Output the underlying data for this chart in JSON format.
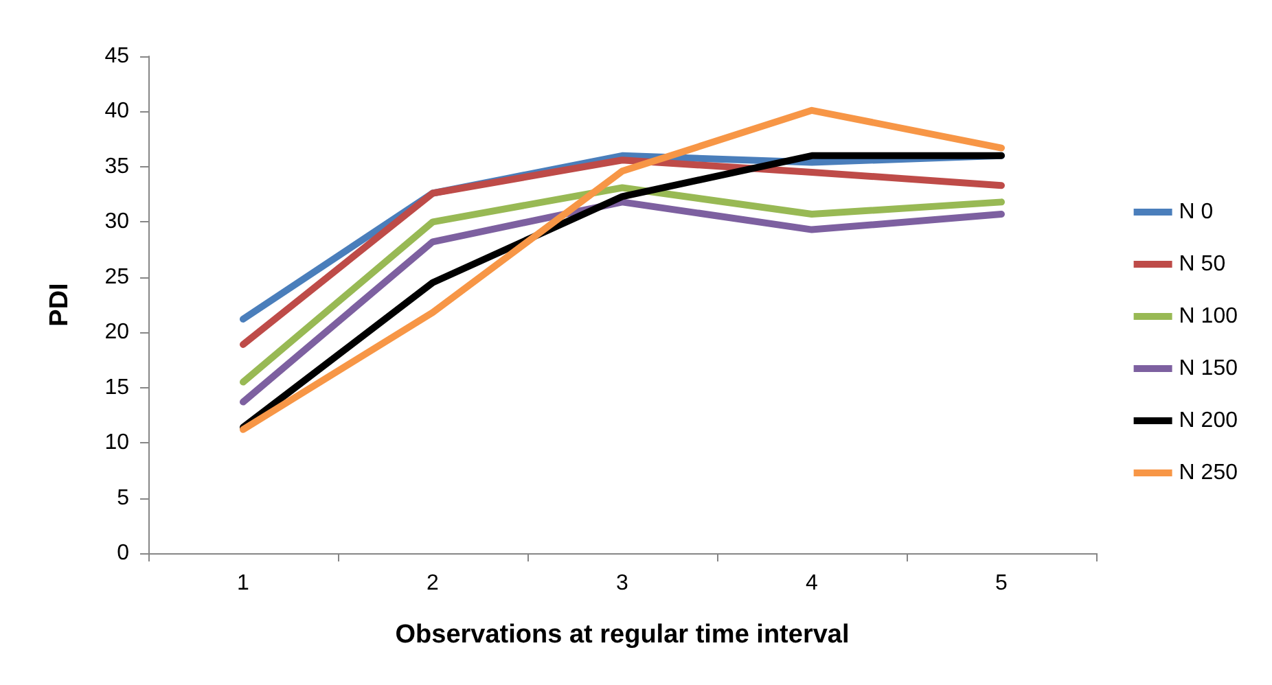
{
  "chart_data": {
    "type": "line",
    "xlabel": "Observations at regular time interval",
    "ylabel": "PDI",
    "categories": [
      "1",
      "2",
      "3",
      "4",
      "5"
    ],
    "ylim": [
      0,
      45
    ],
    "yticks": [
      0,
      5,
      10,
      15,
      20,
      25,
      30,
      35,
      40,
      45
    ],
    "grid": false,
    "legend": "right",
    "marker": "none",
    "line_style": "solid",
    "series": [
      {
        "name": "N 0",
        "color": "#4a7ebb",
        "values": [
          21.2,
          32.6,
          36.0,
          35.4,
          36.0
        ]
      },
      {
        "name": "N 50",
        "color": "#be4b48",
        "values": [
          18.9,
          32.6,
          35.6,
          34.5,
          33.3
        ]
      },
      {
        "name": "N 100",
        "color": "#98b954",
        "values": [
          15.5,
          30.0,
          33.1,
          30.7,
          31.8
        ]
      },
      {
        "name": "N 150",
        "color": "#7d60a0",
        "values": [
          13.7,
          28.2,
          31.8,
          29.3,
          30.7
        ]
      },
      {
        "name": "N 200",
        "color": "#000000",
        "values": [
          11.4,
          24.5,
          32.3,
          36.0,
          36.0
        ]
      },
      {
        "name": "N 250",
        "color": "#f79646",
        "values": [
          11.2,
          21.8,
          34.6,
          40.1,
          36.7
        ]
      }
    ]
  }
}
